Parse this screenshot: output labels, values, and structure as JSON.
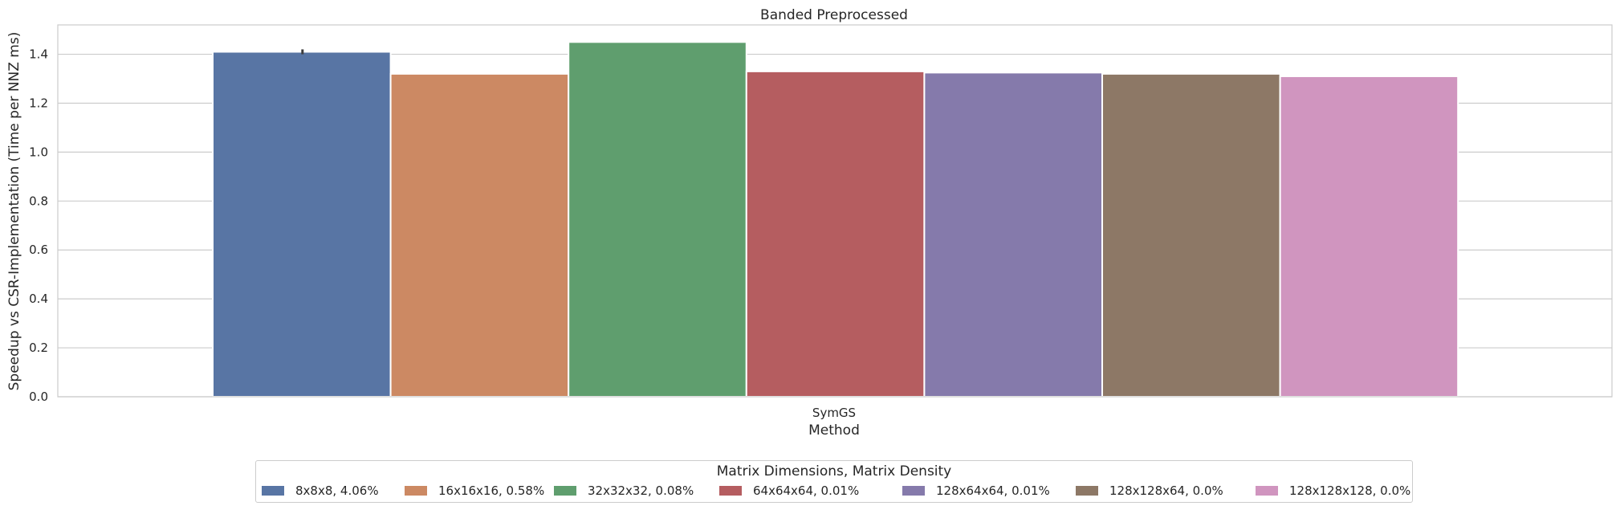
{
  "chart_data": {
    "type": "bar",
    "title": "Banded Preprocessed",
    "xlabel": "Method",
    "ylabel": "Speedup vs CSR-Implementation (Time per NNZ ms)",
    "categories": [
      "SymGS"
    ],
    "ylim": [
      0,
      1.52
    ],
    "yticks": [
      "0.0",
      "0.2",
      "0.4",
      "0.6",
      "0.8",
      "1.0",
      "1.2",
      "1.4"
    ],
    "grid": true,
    "legend": {
      "title": "Matrix Dimensions, Matrix Density",
      "placement": "bottom-center"
    },
    "series": [
      {
        "name": "8x8x8, 4.06%",
        "values": [
          1.41
        ],
        "error": [
          0.01
        ],
        "color": "#5875a4"
      },
      {
        "name": "16x16x16, 0.58%",
        "values": [
          1.32
        ],
        "color": "#cc8963"
      },
      {
        "name": "32x32x32, 0.08%",
        "values": [
          1.45
        ],
        "color": "#5f9e6e"
      },
      {
        "name": "64x64x64, 0.01%",
        "values": [
          1.33
        ],
        "color": "#b55d60"
      },
      {
        "name": "128x64x64, 0.01%",
        "values": [
          1.325
        ],
        "color": "#857aab"
      },
      {
        "name": "128x128x64, 0.0%",
        "values": [
          1.32
        ],
        "color": "#8d7866"
      },
      {
        "name": "128x128x128, 0.0%",
        "values": [
          1.31
        ],
        "color": "#d095bf"
      }
    ]
  }
}
